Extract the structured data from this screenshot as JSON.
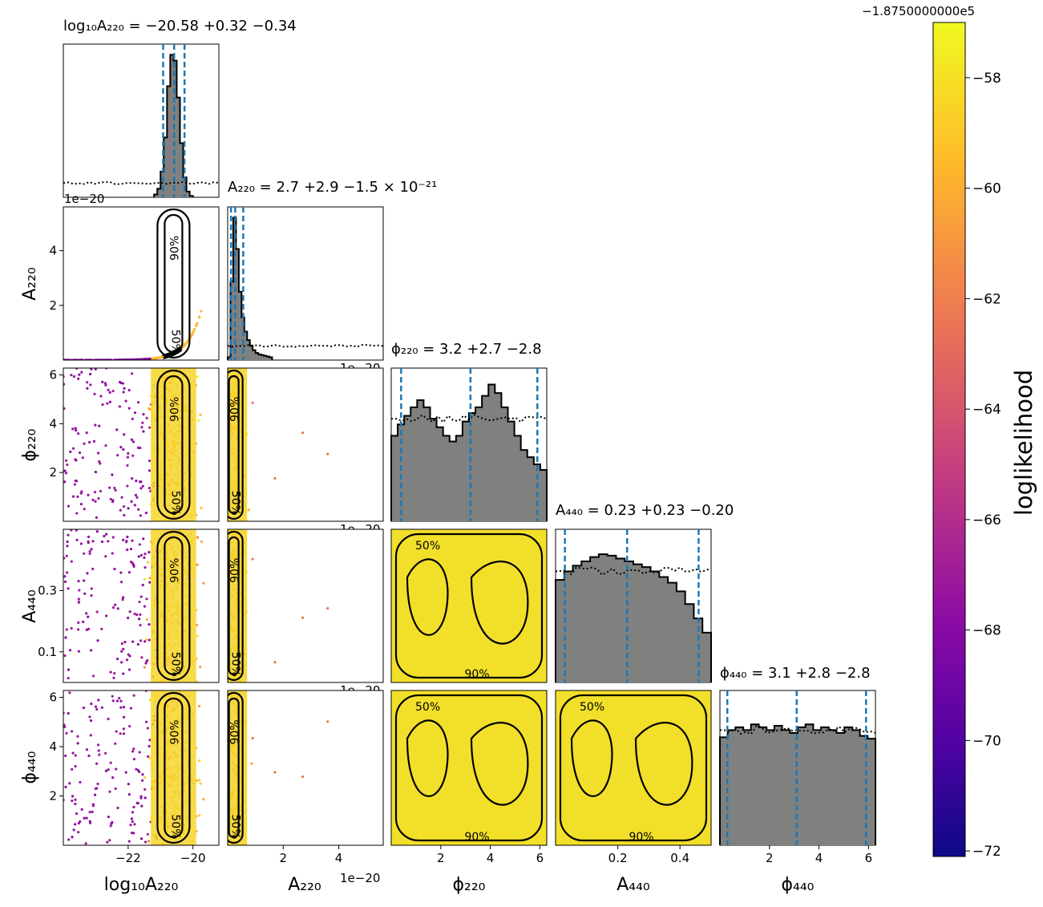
{
  "figure": {
    "colorbar_label": "loglikelihood",
    "colorbar_offset": "−1.8750000000e5",
    "colorbar_ticks": [
      "−58",
      "−60",
      "−62",
      "−64",
      "−66",
      "−68",
      "−70",
      "−72"
    ],
    "colorbar_tick_values": [
      -58,
      -60,
      -62,
      -64,
      -66,
      -68,
      -70,
      -72
    ],
    "colorbar_range": [
      -72.1,
      -57.0
    ],
    "colormap": "plasma",
    "quantile_line_color": "#1f77b4",
    "histogram_fill": "#808080"
  },
  "chart_data": {
    "type": "corner",
    "parameters": [
      {
        "name": "log10A220",
        "axis_label": "log₁₀A₂₂₀",
        "range": [
          -24.0,
          -19.2
        ],
        "ticks": [
          -22,
          -20
        ],
        "tick_labels": [
          "−22",
          "−20"
        ],
        "title": "log₁₀A₂₂₀ = −20.58 +0.32 −0.34",
        "median": -20.58,
        "plus": 0.32,
        "minus": 0.34
      },
      {
        "name": "A220",
        "axis_label": "A₂₂₀",
        "range": [
          0.0,
          5.6
        ],
        "units_offset": "1e−20",
        "ticks": [
          2,
          4
        ],
        "tick_labels": [
          "2",
          "4"
        ],
        "title": "A₂₂₀ = 2.7 +2.9 −1.5 × 10⁻²¹",
        "median": 0.27,
        "plus": 0.29,
        "minus": 0.15
      },
      {
        "name": "phi220",
        "axis_label": "ϕ₂₂₀",
        "range": [
          0.0,
          6.28
        ],
        "ticks": [
          2,
          4,
          6
        ],
        "tick_labels": [
          "2",
          "4",
          "6"
        ],
        "title": "ϕ₂₂₀ = 3.2 +2.7 −2.8",
        "median": 3.2,
        "plus": 2.7,
        "minus": 2.8
      },
      {
        "name": "A440",
        "axis_label": "A₄₄₀",
        "range": [
          0.0,
          0.5
        ],
        "ticks": [
          0.2,
          0.4
        ],
        "tick_labels": [
          "0.2",
          "0.4"
        ],
        "title": "A₄₄₀ = 0.23 +0.23 −0.20",
        "median": 0.23,
        "plus": 0.23,
        "minus": 0.2
      },
      {
        "name": "phi440",
        "axis_label": "ϕ₄₄₀",
        "range": [
          0.0,
          6.28
        ],
        "ticks": [
          2,
          4,
          6
        ],
        "tick_labels": [
          "2",
          "4",
          "6"
        ],
        "title": "ϕ₄₄₀ = 3.1 +2.8 −2.8",
        "median": 3.1,
        "plus": 2.8,
        "minus": 2.8
      }
    ],
    "y_ticks": {
      "A220": {
        "ticks": [
          2,
          4
        ],
        "labels": [
          "2",
          "4"
        ]
      },
      "phi220": {
        "ticks": [
          2,
          4,
          6
        ],
        "labels": [
          "2",
          "4",
          "6"
        ]
      },
      "A440": {
        "ticks": [
          0.1,
          0.3
        ],
        "labels": [
          "0.1",
          "0.3"
        ]
      },
      "phi440": {
        "ticks": [
          2,
          4,
          6
        ],
        "labels": [
          "2",
          "4",
          "6"
        ]
      }
    },
    "offset_label": "1e−20",
    "contour_levels": [
      "50%",
      "90%"
    ],
    "histograms": {
      "log10A220": {
        "edges": [
          -21.2,
          -20.0
        ],
        "counts": [
          0.02,
          0.06,
          0.18,
          0.42,
          0.78,
          1.0,
          0.96,
          0.7,
          0.38,
          0.14,
          0.04,
          0.01
        ],
        "prior": 0.1
      },
      "A220": {
        "edges": [
          0.0,
          1.6
        ],
        "counts": [
          0.02,
          0.55,
          1.0,
          0.78,
          0.48,
          0.3,
          0.2,
          0.14,
          0.1,
          0.07,
          0.05,
          0.04,
          0.035,
          0.03,
          0.025,
          0.02
        ],
        "prior": 0.1
      },
      "phi220": {
        "edges": [
          0.0,
          6.28
        ],
        "counts": [
          0.6,
          0.68,
          0.74,
          0.8,
          0.85,
          0.8,
          0.72,
          0.66,
          0.6,
          0.56,
          0.6,
          0.7,
          0.76,
          0.8,
          0.88,
          0.96,
          0.9,
          0.8,
          0.7,
          0.6,
          0.5,
          0.45,
          0.4,
          0.36
        ],
        "prior": 0.72
      },
      "A440": {
        "edges": [
          0.0,
          0.5
        ],
        "counts": [
          0.72,
          0.78,
          0.82,
          0.85,
          0.88,
          0.9,
          0.89,
          0.87,
          0.85,
          0.83,
          0.81,
          0.78,
          0.74,
          0.7,
          0.64,
          0.55,
          0.45,
          0.35
        ],
        "prior": 0.78
      },
      "phi440": {
        "edges": [
          0.0,
          6.28
        ],
        "counts": [
          0.75,
          0.8,
          0.82,
          0.8,
          0.84,
          0.82,
          0.8,
          0.83,
          0.8,
          0.78,
          0.82,
          0.84,
          0.8,
          0.82,
          0.8,
          0.78,
          0.82,
          0.8,
          0.76,
          0.74
        ],
        "prior": 0.8
      }
    }
  }
}
